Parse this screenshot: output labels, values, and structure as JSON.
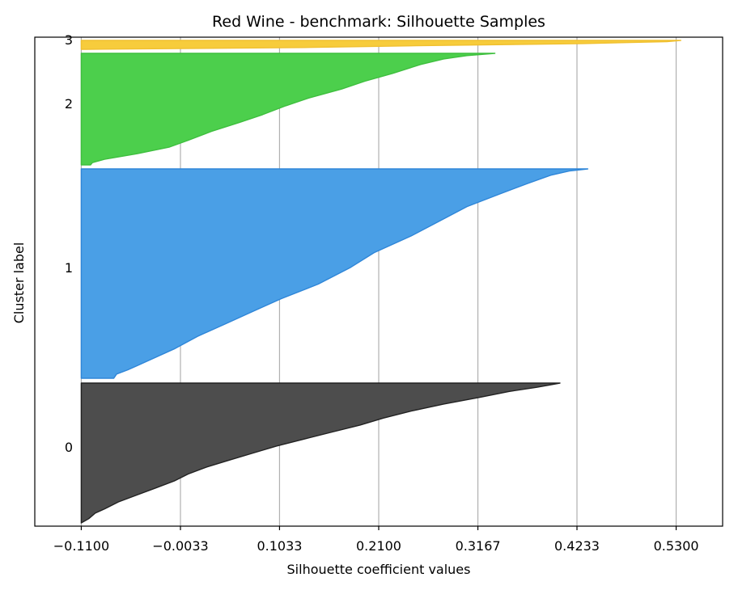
{
  "chart_data": {
    "type": "area",
    "title": "Red Wine - benchmark: Silhouette Samples",
    "xlabel": "Silhouette coefficient values",
    "ylabel": "Cluster label",
    "xlim": [
      -0.16,
      0.58
    ],
    "x_ticks": [
      -0.11,
      -0.0033,
      0.1033,
      0.21,
      0.3167,
      0.4233,
      0.53
    ],
    "x_tick_labels": [
      "−0.1100",
      "−0.0033",
      "0.1033",
      "0.2100",
      "0.3167",
      "0.4233",
      "0.5300"
    ],
    "grid": "vertical",
    "baseline_x": -0.11,
    "clusters": [
      {
        "label": "0",
        "color": "#4d4d4d",
        "edge_color": "#222222",
        "profile": [
          [
            0.0,
            0.405
          ],
          [
            0.03,
            0.38
          ],
          [
            0.06,
            0.35
          ],
          [
            0.1,
            0.32
          ],
          [
            0.15,
            0.28
          ],
          [
            0.2,
            0.245
          ],
          [
            0.25,
            0.215
          ],
          [
            0.3,
            0.19
          ],
          [
            0.35,
            0.16
          ],
          [
            0.4,
            0.13
          ],
          [
            0.45,
            0.1
          ],
          [
            0.5,
            0.075
          ],
          [
            0.55,
            0.05
          ],
          [
            0.6,
            0.025
          ],
          [
            0.65,
            0.005
          ],
          [
            0.7,
            -0.01
          ],
          [
            0.75,
            -0.03
          ],
          [
            0.8,
            -0.05
          ],
          [
            0.85,
            -0.07
          ],
          [
            0.9,
            -0.085
          ],
          [
            0.93,
            -0.095
          ],
          [
            0.97,
            -0.102
          ],
          [
            1.0,
            -0.11
          ]
        ]
      },
      {
        "label": "1",
        "color": "#4a9fe6",
        "edge_color": "#2f86d8",
        "profile": [
          [
            0.0,
            0.435
          ],
          [
            0.01,
            0.415
          ],
          [
            0.03,
            0.395
          ],
          [
            0.07,
            0.37
          ],
          [
            0.12,
            0.34
          ],
          [
            0.18,
            0.305
          ],
          [
            0.25,
            0.275
          ],
          [
            0.32,
            0.245
          ],
          [
            0.4,
            0.205
          ],
          [
            0.47,
            0.18
          ],
          [
            0.55,
            0.145
          ],
          [
            0.62,
            0.105
          ],
          [
            0.68,
            0.075
          ],
          [
            0.74,
            0.045
          ],
          [
            0.8,
            0.015
          ],
          [
            0.86,
            -0.01
          ],
          [
            0.9,
            -0.03
          ],
          [
            0.94,
            -0.05
          ],
          [
            0.96,
            -0.06
          ],
          [
            0.98,
            -0.072
          ],
          [
            1.0,
            -0.075
          ]
        ]
      },
      {
        "label": "2",
        "color": "#4ccf4c",
        "edge_color": "#3fbf3f",
        "profile": [
          [
            0.0,
            0.335
          ],
          [
            0.02,
            0.305
          ],
          [
            0.05,
            0.28
          ],
          [
            0.1,
            0.255
          ],
          [
            0.18,
            0.225
          ],
          [
            0.25,
            0.195
          ],
          [
            0.32,
            0.17
          ],
          [
            0.4,
            0.135
          ],
          [
            0.47,
            0.11
          ],
          [
            0.55,
            0.085
          ],
          [
            0.62,
            0.06
          ],
          [
            0.7,
            0.03
          ],
          [
            0.78,
            0.005
          ],
          [
            0.84,
            -0.015
          ],
          [
            0.9,
            -0.05
          ],
          [
            0.95,
            -0.085
          ],
          [
            0.98,
            -0.098
          ],
          [
            1.0,
            -0.1
          ]
        ]
      },
      {
        "label": "3",
        "color": "#f7cc3c",
        "edge_color": "#f0c030",
        "profile": [
          [
            0.0,
            0.535
          ],
          [
            0.15,
            0.52
          ],
          [
            0.35,
            0.43
          ],
          [
            0.6,
            0.25
          ],
          [
            0.8,
            0.13
          ],
          [
            1.0,
            -0.105
          ]
        ]
      }
    ]
  }
}
